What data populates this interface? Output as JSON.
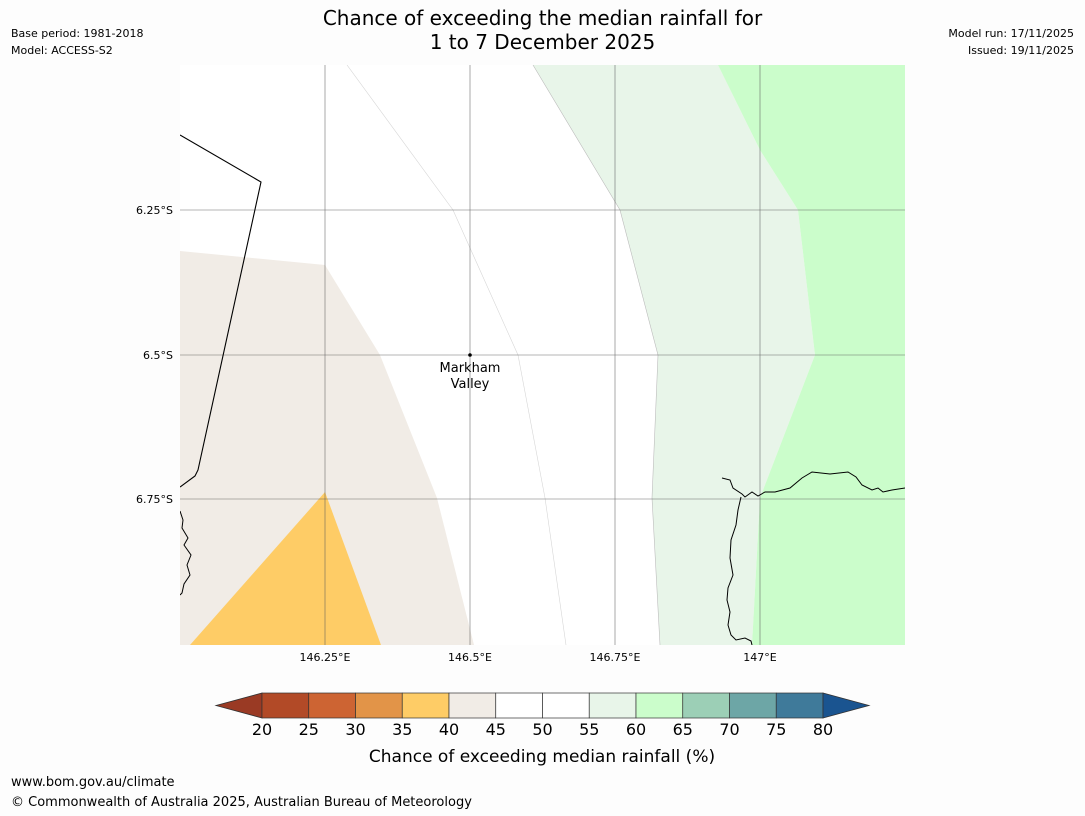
{
  "header": {
    "title_line1": "Chance of exceeding the median rainfall for",
    "title_line2": "1 to 7 December 2025",
    "base_period": "Base period: 1981-2018",
    "model": "Model: ACCESS-S2",
    "model_run": "Model run: 17/11/2025",
    "issued": "Issued: 19/11/2025"
  },
  "map": {
    "lat_labels": [
      "6.25°S",
      "6.5°S",
      "6.75°S"
    ],
    "lon_labels": [
      "146.25°E",
      "146.5°E",
      "146.75°E",
      "147°E"
    ],
    "place_name_line1": "Markham",
    "place_name_line2": "Valley",
    "colors": {
      "band_40_45": "#f1ece6",
      "band_35_40": "#fecc66",
      "band_55_60": "#e8f5e9",
      "band_60_65": "#cbfdcb"
    }
  },
  "colorbar": {
    "title": "Chance of exceeding median rainfall (%)",
    "ticks": [
      "20",
      "25",
      "30",
      "35",
      "40",
      "45",
      "50",
      "55",
      "60",
      "65",
      "70",
      "75",
      "80"
    ],
    "under_color": "#9a3a24",
    "over_color": "#1a5490",
    "colors": [
      "#b24a27",
      "#cd6433",
      "#e29448",
      "#fecc66",
      "#f1ece6",
      "#ffffff",
      "#ffffff",
      "#e8f5e9",
      "#cbfdcb",
      "#9ccfb6",
      "#6da6a6",
      "#3f7a9a"
    ]
  },
  "footer": {
    "url": "www.bom.gov.au/climate",
    "copyright": "© Commonwealth of Australia 2025, Australian Bureau of Meteorology"
  }
}
